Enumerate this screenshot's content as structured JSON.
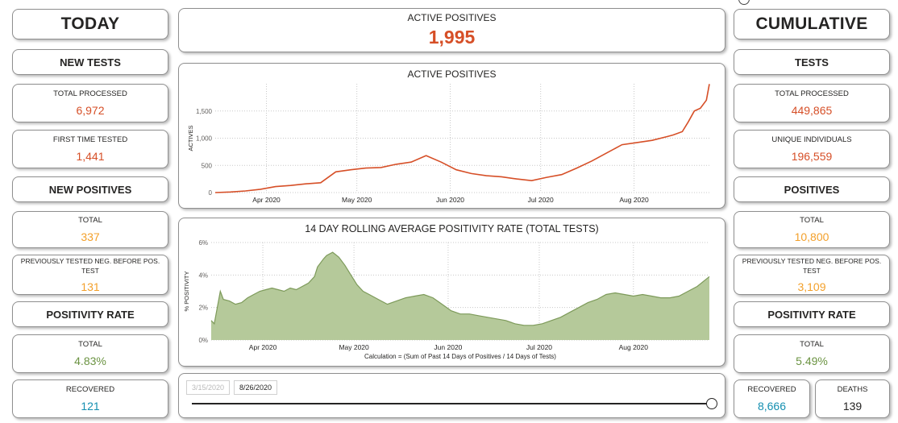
{
  "header": {
    "today_title": "TODAY",
    "cumulative_title": "CUMULATIVE",
    "active_label": "ACTIVE POSITIVES",
    "active_value": "1,995"
  },
  "today": {
    "new_tests_head": "NEW TESTS",
    "total_processed": {
      "label": "TOTAL PROCESSED",
      "value": "6,972"
    },
    "first_time_tested": {
      "label": "FIRST TIME TESTED",
      "value": "1,441"
    },
    "new_positives_head": "NEW POSITIVES",
    "positives_total": {
      "label": "TOTAL",
      "value": "337"
    },
    "previously_tested": {
      "label": "PREVIOUSLY TESTED NEG. BEFORE POS. TEST",
      "value": "131"
    },
    "positivity_head": "POSITIVITY RATE",
    "positivity_total": {
      "label": "TOTAL",
      "value": "4.83%"
    },
    "recovered": {
      "label": "RECOVERED",
      "value": "121"
    }
  },
  "cumulative": {
    "tests_head": "TESTS",
    "total_processed": {
      "label": "TOTAL PROCESSED",
      "value": "449,865"
    },
    "unique_individuals": {
      "label": "UNIQUE INDIVIDUALS",
      "value": "196,559"
    },
    "positives_head": "POSITIVES",
    "positives_total": {
      "label": "TOTAL",
      "value": "10,800"
    },
    "previously_tested": {
      "label": "PREVIOUSLY TESTED NEG. BEFORE POS. TEST",
      "value": "3,109"
    },
    "positivity_head": "POSITIVITY RATE",
    "positivity_total": {
      "label": "TOTAL",
      "value": "5.49%"
    },
    "recovered": {
      "label": "RECOVERED",
      "value": "8,666"
    },
    "deaths": {
      "label": "DEATHS",
      "value": "139"
    }
  },
  "slicer": {
    "start_date": "3/15/2020",
    "end_date": "8/26/2020",
    "position": 1.0
  },
  "colors": {
    "red": "#d64f27",
    "orange": "#f3a02b",
    "green": "#6b9342",
    "teal": "#148fb0",
    "area_fill": "#b5c99a",
    "area_line": "#7d9a5a"
  },
  "chart_data": [
    {
      "type": "line",
      "title": "ACTIVE POSITIVES",
      "ylabel": "ACTIVES",
      "xlabel": "",
      "ylim": [
        0,
        2000
      ],
      "yticks": [
        "0",
        "500",
        "1,000",
        "1,500"
      ],
      "ytick_values": [
        0,
        500,
        1000,
        1500
      ],
      "xticks": [
        "Apr 2020",
        "May 2020",
        "Jun 2020",
        "Jul 2020",
        "Aug 2020"
      ],
      "xtick_days": [
        17,
        47,
        78,
        108,
        139
      ],
      "xrange_days": [
        0,
        164
      ],
      "color": "#d64f27",
      "series": [
        {
          "x": [
            0,
            5,
            10,
            15,
            20,
            25,
            30,
            35,
            40,
            45,
            50,
            55,
            60,
            65,
            70,
            75,
            80,
            85,
            90,
            95,
            100,
            105,
            110,
            115,
            120,
            125,
            130,
            135,
            140,
            145,
            150,
            152,
            155,
            157,
            159,
            161,
            163,
            164
          ],
          "values": [
            0,
            10,
            30,
            60,
            110,
            130,
            160,
            180,
            380,
            420,
            450,
            460,
            520,
            560,
            680,
            560,
            420,
            350,
            310,
            290,
            250,
            220,
            280,
            330,
            450,
            580,
            730,
            880,
            920,
            960,
            1030,
            1060,
            1120,
            1300,
            1500,
            1550,
            1700,
            1995
          ]
        }
      ]
    },
    {
      "type": "area",
      "title": "14 DAY ROLLING AVERAGE POSITIVITY RATE (TOTAL TESTS)",
      "ylabel": "% POSITIVITY",
      "xlabel": "Calculation = (Sum of Past 14 Days of Positives / 14 Days of Tests)",
      "ylim": [
        0,
        6
      ],
      "yticks": [
        "0%",
        "2%",
        "4%",
        "6%"
      ],
      "ytick_values": [
        0,
        2,
        4,
        6
      ],
      "xticks": [
        "Apr 2020",
        "May 2020",
        "Jun 2020",
        "Jul 2020",
        "Aug 2020"
      ],
      "xtick_days": [
        17,
        47,
        78,
        108,
        139
      ],
      "xrange_days": [
        0,
        164
      ],
      "color": "#7d9a5a",
      "series": [
        {
          "x": [
            0,
            1,
            3,
            4,
            6,
            8,
            10,
            12,
            14,
            16,
            18,
            20,
            22,
            24,
            26,
            28,
            30,
            32,
            34,
            35,
            37,
            38,
            40,
            42,
            44,
            46,
            48,
            50,
            52,
            55,
            58,
            61,
            64,
            67,
            70,
            73,
            76,
            79,
            82,
            85,
            88,
            91,
            94,
            97,
            100,
            103,
            106,
            109,
            112,
            115,
            118,
            121,
            124,
            127,
            130,
            133,
            136,
            139,
            142,
            145,
            148,
            151,
            154,
            157,
            160,
            164
          ],
          "values": [
            1.2,
            1.0,
            3.0,
            2.5,
            2.4,
            2.2,
            2.3,
            2.6,
            2.8,
            3.0,
            3.1,
            3.2,
            3.1,
            3.0,
            3.2,
            3.1,
            3.3,
            3.5,
            3.9,
            4.5,
            5.0,
            5.2,
            5.4,
            5.1,
            4.6,
            4.0,
            3.4,
            3.0,
            2.8,
            2.5,
            2.2,
            2.4,
            2.6,
            2.7,
            2.8,
            2.6,
            2.2,
            1.8,
            1.6,
            1.6,
            1.5,
            1.4,
            1.3,
            1.2,
            1.0,
            0.9,
            0.9,
            1.0,
            1.2,
            1.4,
            1.7,
            2.0,
            2.3,
            2.5,
            2.8,
            2.9,
            2.8,
            2.7,
            2.8,
            2.7,
            2.6,
            2.6,
            2.7,
            3.0,
            3.3,
            3.9
          ]
        }
      ]
    }
  ]
}
